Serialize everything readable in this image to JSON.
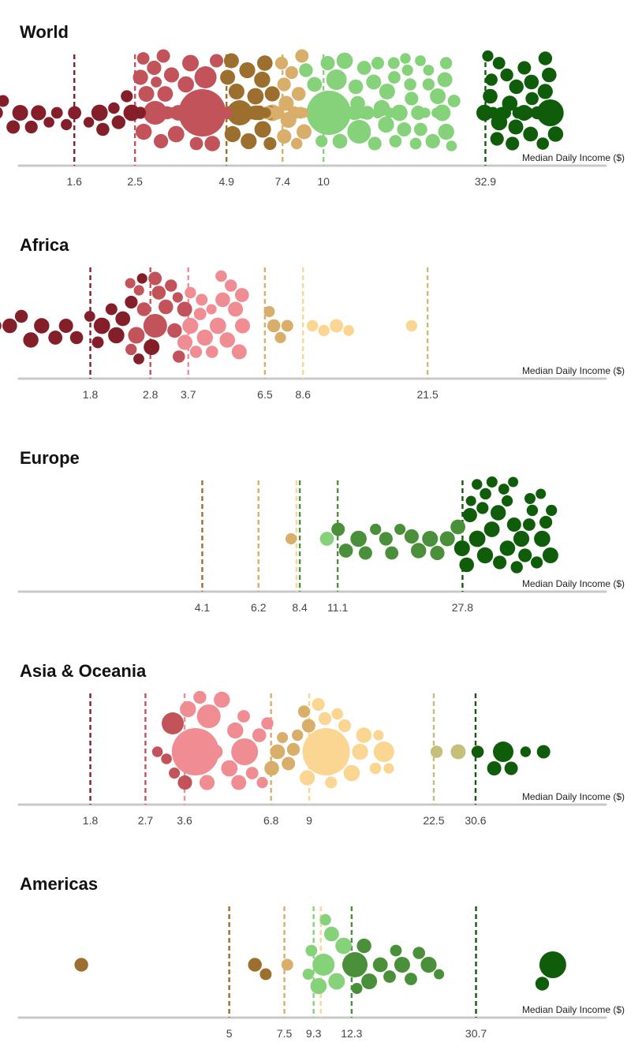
{
  "axis_label": "Median Daily Income ($)",
  "colors": {
    "axis": "#c8c8c8",
    "bands": [
      "#841f2a",
      "#c2535b",
      "#f08d92",
      "#9c6f2e",
      "#d9ae6b",
      "#fbd592",
      "#86d27a",
      "#c4c07a",
      "#4a8f3a",
      "#0f5d0a"
    ]
  },
  "chart_data": [
    {
      "type": "scatter",
      "subtype": "beeswarm",
      "title": "World",
      "thresholds": [
        {
          "value": 1.6,
          "label": "1.6",
          "color": "#841f2a"
        },
        {
          "value": 2.5,
          "label": "2.5",
          "color": "#c2535b"
        },
        {
          "value": 4.9,
          "label": "4.9",
          "color": "#9c6f2e"
        },
        {
          "value": 7.4,
          "label": "7.4",
          "color": "#d9ae6b"
        },
        {
          "value": 10,
          "label": "10",
          "color": "#86d27a"
        },
        {
          "value": 32.9,
          "label": "32.9",
          "color": "#0f5d0a"
        }
      ],
      "clusters": [
        {
          "from": 0.9,
          "to": 1.6,
          "count": 10,
          "color": "#841f2a",
          "big": []
        },
        {
          "from": 1.8,
          "to": 2.6,
          "count": 8,
          "color": "#841f2a",
          "big": []
        },
        {
          "from": 2.6,
          "to": 4.9,
          "count": 52,
          "color": "#c2535b",
          "big": [
            {
              "value": 4.1,
              "size": 30
            },
            {
              "value": 2.9,
              "size": 15
            },
            {
              "value": 4.2,
              "size": 14
            }
          ]
        },
        {
          "from": 4.9,
          "to": 6.8,
          "count": 28,
          "color": "#9c6f2e",
          "big": [
            {
              "value": 5.4,
              "size": 16
            }
          ]
        },
        {
          "from": 6.6,
          "to": 8.8,
          "count": 22,
          "color": "#d9ae6b",
          "big": []
        },
        {
          "from": 8.8,
          "to": 26.0,
          "count": 62,
          "color": "#86d27a",
          "big": [
            {
              "value": 10.4,
              "size": 28
            },
            {
              "value": 13.0,
              "size": 15
            },
            {
              "value": 11.0,
              "size": 13
            }
          ]
        },
        {
          "from": 32.9,
          "to": 55.0,
          "count": 38,
          "color": "#0f5d0a",
          "big": [
            {
              "value": 53.0,
              "size": 17
            }
          ]
        }
      ]
    },
    {
      "type": "scatter",
      "subtype": "beeswarm",
      "title": "Africa",
      "thresholds": [
        {
          "value": 1.8,
          "label": "1.8",
          "color": "#841f2a"
        },
        {
          "value": 2.8,
          "label": "2.8",
          "color": "#c2535b"
        },
        {
          "value": 3.7,
          "label": "3.7",
          "color": "#f08d92"
        },
        {
          "value": 6.5,
          "label": "6.5",
          "color": "#d9ae6b"
        },
        {
          "value": 8.6,
          "label": "8.6",
          "color": "#fbd592"
        },
        {
          "value": 21.5,
          "label": "21.5",
          "color": "#c4c07a"
        }
      ],
      "clusters": [
        {
          "from": 0.9,
          "to": 1.8,
          "count": 9,
          "color": "#841f2a",
          "big": []
        },
        {
          "from": 1.9,
          "to": 2.8,
          "count": 9,
          "color": "#841f2a",
          "big": []
        },
        {
          "from": 2.4,
          "to": 3.6,
          "count": 16,
          "color": "#c2535b",
          "big": [
            {
              "value": 2.9,
              "size": 15
            }
          ]
        },
        {
          "from": 3.6,
          "to": 5.6,
          "count": 18,
          "color": "#f08d92",
          "big": []
        },
        {
          "from": 6.6,
          "to": 7.7,
          "count": 4,
          "color": "#d9ae6b",
          "big": []
        },
        {
          "from": 9.3,
          "to": 12.1,
          "count": 4,
          "color": "#fbd592",
          "big": []
        },
        {
          "from": 19.0,
          "to": 19.0,
          "count": 1,
          "color": "#fbd592",
          "big": []
        }
      ]
    },
    {
      "type": "scatter",
      "subtype": "beeswarm",
      "title": "Europe",
      "thresholds": [
        {
          "value": 4.1,
          "label": "4.1",
          "color": "#9c6f2e"
        },
        {
          "value": 6.2,
          "label": "6.2",
          "color": "#d9ae6b"
        },
        {
          "value": 8.2,
          "label": "",
          "color": "#fbd592"
        },
        {
          "value": 8.4,
          "label": "8.4",
          "color": "#4a8f3a"
        },
        {
          "value": 11.1,
          "label": "11.1",
          "color": "#4a8f3a"
        },
        {
          "value": 27.8,
          "label": "27.8",
          "color": "#0f5d0a"
        }
      ],
      "clusters": [
        {
          "from": 8.0,
          "to": 8.0,
          "count": 1,
          "color": "#d9ae6b",
          "big": []
        },
        {
          "from": 10.4,
          "to": 10.4,
          "count": 1,
          "color": "#86d27a",
          "big": []
        },
        {
          "from": 11.2,
          "to": 26.5,
          "count": 14,
          "color": "#4a8f3a",
          "big": []
        },
        {
          "from": 27.8,
          "to": 54.0,
          "count": 30,
          "color": "#0f5d0a",
          "big": []
        }
      ]
    },
    {
      "type": "scatter",
      "subtype": "beeswarm",
      "title": "Asia & Oceania",
      "thresholds": [
        {
          "value": 1.8,
          "label": "1.8",
          "color": "#841f2a"
        },
        {
          "value": 2.7,
          "label": "2.7",
          "color": "#c2535b"
        },
        {
          "value": 3.6,
          "label": "3.6",
          "color": "#f08d92"
        },
        {
          "value": 6.8,
          "label": "6.8",
          "color": "#d9ae6b"
        },
        {
          "value": 9,
          "label": "9",
          "color": "#fbd592"
        },
        {
          "value": 22.5,
          "label": "22.5",
          "color": "#c4c07a"
        },
        {
          "value": 30.6,
          "label": "30.6",
          "color": "#0f5d0a"
        }
      ],
      "clusters": [
        {
          "from": 2.9,
          "to": 3.6,
          "count": 5,
          "color": "#c2535b",
          "big": [
            {
              "value": 3.3,
              "size": 14
            }
          ]
        },
        {
          "from": 3.7,
          "to": 6.7,
          "count": 18,
          "color": "#f08d92",
          "big": [
            {
              "value": 3.9,
              "size": 30
            },
            {
              "value": 5.6,
              "size": 17
            },
            {
              "value": 4.3,
              "size": 15
            }
          ]
        },
        {
          "from": 6.8,
          "to": 8.9,
          "count": 8,
          "color": "#d9ae6b",
          "big": []
        },
        {
          "from": 9.0,
          "to": 16.0,
          "count": 14,
          "color": "#fbd592",
          "big": [
            {
              "value": 10.2,
              "size": 30
            },
            {
              "value": 15.6,
              "size": 13
            }
          ]
        },
        {
          "from": 23.0,
          "to": 26.5,
          "count": 2,
          "color": "#c4c07a",
          "big": []
        },
        {
          "from": 31.5,
          "to": 50.0,
          "count": 6,
          "color": "#0f5d0a",
          "big": [
            {
              "value": 37.5,
              "size": 13
            }
          ]
        }
      ]
    },
    {
      "type": "scatter",
      "subtype": "beeswarm",
      "title": "Americas",
      "thresholds": [
        {
          "value": 5,
          "label": "5",
          "color": "#9c6f2e"
        },
        {
          "value": 7.5,
          "label": "7.5",
          "color": "#d9ae6b"
        },
        {
          "value": 9.3,
          "label": "9.3",
          "color": "#86d27a"
        },
        {
          "value": 9.8,
          "label": "",
          "color": "#fbd592"
        },
        {
          "value": 12.3,
          "label": "12.3",
          "color": "#4a8f3a"
        },
        {
          "value": 30.7,
          "label": "30.7",
          "color": "#0f5d0a"
        }
      ],
      "clusters": [
        {
          "from": 1.7,
          "to": 1.7,
          "count": 1,
          "color": "#9c6f2e",
          "big": []
        },
        {
          "from": 6.0,
          "to": 6.6,
          "count": 2,
          "color": "#9c6f2e",
          "big": []
        },
        {
          "from": 7.7,
          "to": 7.7,
          "count": 1,
          "color": "#d9ae6b",
          "big": []
        },
        {
          "from": 8.9,
          "to": 11.6,
          "count": 8,
          "color": "#86d27a",
          "big": [
            {
              "value": 10.0,
              "size": 14
            }
          ]
        },
        {
          "from": 12.6,
          "to": 23.0,
          "count": 12,
          "color": "#4a8f3a",
          "big": [
            {
              "value": 12.6,
              "size": 16
            }
          ]
        },
        {
          "from": 46.5,
          "to": 54.0,
          "count": 2,
          "color": "#0f5d0a",
          "big": [
            {
              "value": 54.0,
              "size": 17
            }
          ]
        }
      ]
    }
  ]
}
